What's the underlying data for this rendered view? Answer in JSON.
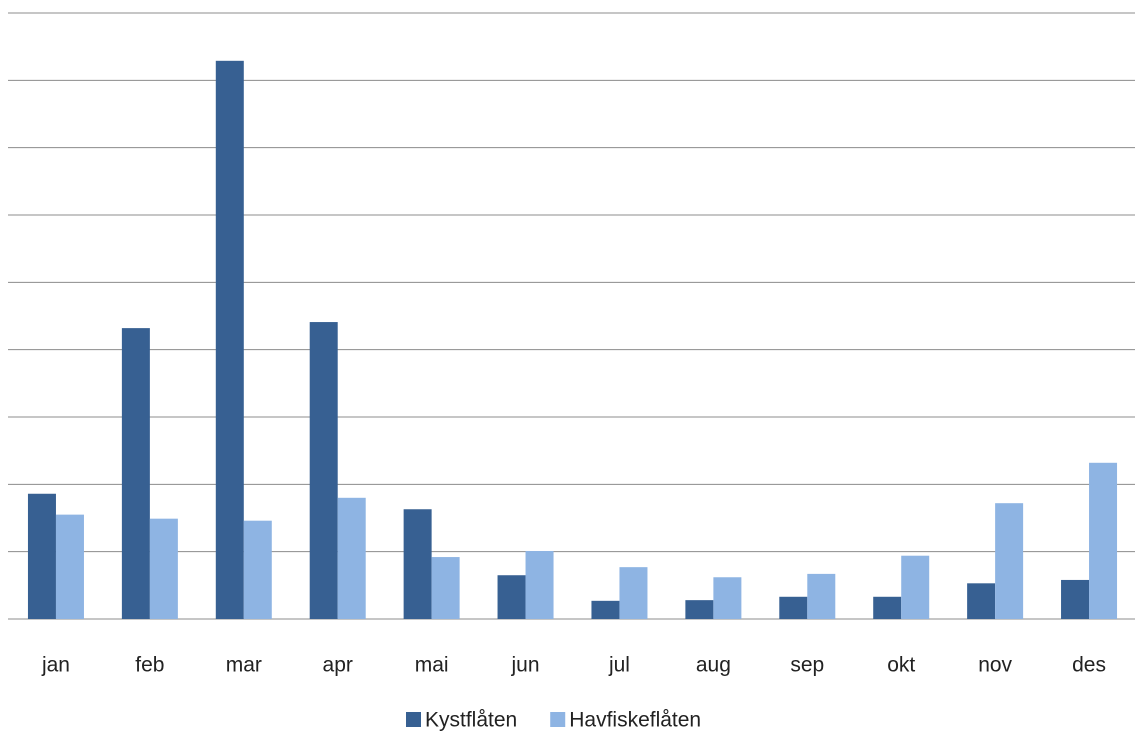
{
  "chart_data": {
    "type": "bar",
    "categories": [
      "jan",
      "feb",
      "mar",
      "apr",
      "mai",
      "jun",
      "jul",
      "aug",
      "sep",
      "okt",
      "nov",
      "des"
    ],
    "series": [
      {
        "name": "Kystflåten",
        "color": "#376092",
        "values": [
          1.86,
          4.32,
          8.29,
          4.41,
          1.63,
          0.65,
          0.27,
          0.28,
          0.33,
          0.33,
          0.53,
          0.58
        ]
      },
      {
        "name": "Havfiskeflåten",
        "color": "#8eb4e3",
        "values": [
          1.55,
          1.49,
          1.46,
          1.8,
          0.92,
          1.01,
          0.77,
          0.62,
          0.67,
          0.94,
          1.72,
          2.32
        ]
      }
    ],
    "ylim": [
      0,
      9
    ],
    "yticks": [
      0,
      1,
      2,
      3,
      4,
      5,
      6,
      7,
      8,
      9
    ],
    "grid": true,
    "legend": "bottom"
  }
}
